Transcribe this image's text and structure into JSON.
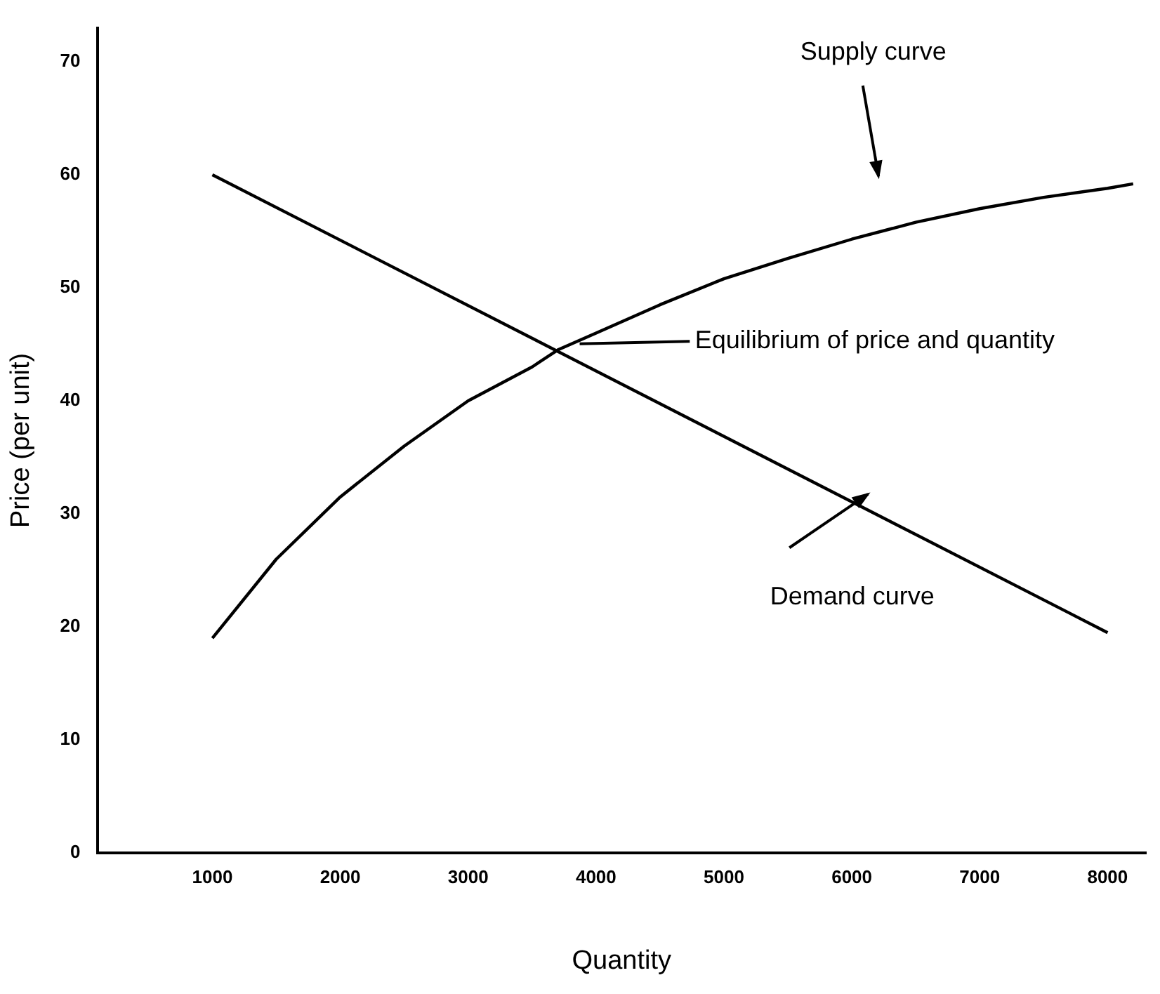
{
  "chart_data": {
    "type": "line",
    "xlabel": "Quantity",
    "ylabel": "Price (per unit)",
    "xlim": [
      100,
      8300
    ],
    "ylim": [
      0,
      73
    ],
    "xticks": [
      1000,
      2000,
      3000,
      4000,
      5000,
      6000,
      7000,
      8000
    ],
    "yticks": [
      0,
      10,
      20,
      30,
      40,
      50,
      60,
      70
    ],
    "grid": false,
    "legend": false,
    "marker": "none",
    "line_style": "solid",
    "series": [
      {
        "color": "#000000",
        "x": [
          1000,
          1500,
          2000,
          2500,
          3000,
          3500,
          3700,
          4000,
          4500,
          5000,
          5500,
          6000,
          6500,
          7000,
          7500,
          8000,
          8200
        ],
        "values": [
          19,
          26,
          31.5,
          36,
          40,
          43,
          44.5,
          46,
          48.5,
          50.8,
          52.6,
          54.3,
          55.8,
          57,
          58,
          58.8,
          59.2
        ]
      },
      {
        "color": "#000000",
        "x": [
          1000,
          8000
        ],
        "values": [
          60,
          19.5
        ]
      }
    ],
    "annotations": [
      "Supply curve",
      "Equilibrium of price and quantity",
      "Demand curve"
    ]
  }
}
